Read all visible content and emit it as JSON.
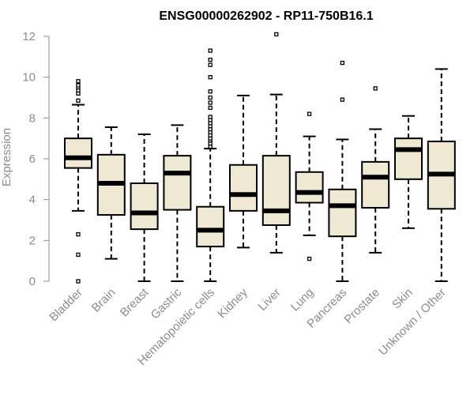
{
  "chart_data": {
    "type": "boxplot",
    "title": "ENSG00000262902 - RP11-750B16.1",
    "xlabel": "",
    "ylabel": "Expression",
    "ylim": [
      0,
      12
    ],
    "yticks": [
      0,
      2,
      4,
      6,
      8,
      10,
      12
    ],
    "box_fill": "#efe8d2",
    "categories": [
      "Bladder",
      "Brain",
      "Breast",
      "Gastric",
      "Hematopoietic cells",
      "Kidney",
      "Liver",
      "Lung",
      "Pancreas",
      "Prostate",
      "Skin",
      "Unknown / Other"
    ],
    "boxes": [
      {
        "name": "Bladder",
        "whisker_low": 3.45,
        "q1": 5.55,
        "median": 6.05,
        "q3": 7.0,
        "whisker_high": 8.65,
        "outliers": [
          0.0,
          1.3,
          2.3,
          8.85,
          9.2,
          9.35,
          9.5,
          9.6,
          9.8
        ]
      },
      {
        "name": "Brain",
        "whisker_low": 1.1,
        "q1": 3.25,
        "median": 4.8,
        "q3": 6.2,
        "whisker_high": 7.55,
        "outliers": []
      },
      {
        "name": "Breast",
        "whisker_low": 0.0,
        "q1": 2.55,
        "median": 3.35,
        "q3": 4.8,
        "whisker_high": 7.2,
        "outliers": []
      },
      {
        "name": "Gastric",
        "whisker_low": 0.0,
        "q1": 3.5,
        "median": 5.3,
        "q3": 6.15,
        "whisker_high": 7.65,
        "outliers": []
      },
      {
        "name": "Hematopoietic cells",
        "whisker_low": 0.0,
        "q1": 1.7,
        "median": 2.5,
        "q3": 3.65,
        "whisker_high": 6.5,
        "outliers": [
          6.6,
          6.75,
          6.9,
          7.0,
          7.15,
          7.3,
          7.45,
          7.6,
          7.75,
          7.9,
          8.05,
          8.5,
          8.75,
          9.0,
          9.3,
          10.0,
          10.6,
          10.85,
          11.3
        ]
      },
      {
        "name": "Kidney",
        "whisker_low": 1.65,
        "q1": 3.45,
        "median": 4.25,
        "q3": 5.7,
        "whisker_high": 9.1,
        "outliers": []
      },
      {
        "name": "Liver",
        "whisker_low": 1.4,
        "q1": 2.75,
        "median": 3.45,
        "q3": 6.15,
        "whisker_high": 9.15,
        "outliers": [
          12.1
        ]
      },
      {
        "name": "Lung",
        "whisker_low": 2.25,
        "q1": 3.85,
        "median": 4.35,
        "q3": 5.35,
        "whisker_high": 7.1,
        "outliers": [
          1.1,
          8.2
        ]
      },
      {
        "name": "Pancreas",
        "whisker_low": 0.0,
        "q1": 2.2,
        "median": 3.7,
        "q3": 4.5,
        "whisker_high": 6.95,
        "outliers": [
          8.9,
          10.7
        ]
      },
      {
        "name": "Prostate",
        "whisker_low": 1.4,
        "q1": 3.6,
        "median": 5.1,
        "q3": 5.85,
        "whisker_high": 7.45,
        "outliers": [
          9.45
        ]
      },
      {
        "name": "Skin",
        "whisker_low": 2.6,
        "q1": 5.0,
        "median": 6.45,
        "q3": 7.0,
        "whisker_high": 8.1,
        "outliers": []
      },
      {
        "name": "Unknown / Other",
        "whisker_low": 0.0,
        "q1": 3.55,
        "median": 5.25,
        "q3": 6.85,
        "whisker_high": 10.4,
        "outliers": []
      }
    ]
  }
}
